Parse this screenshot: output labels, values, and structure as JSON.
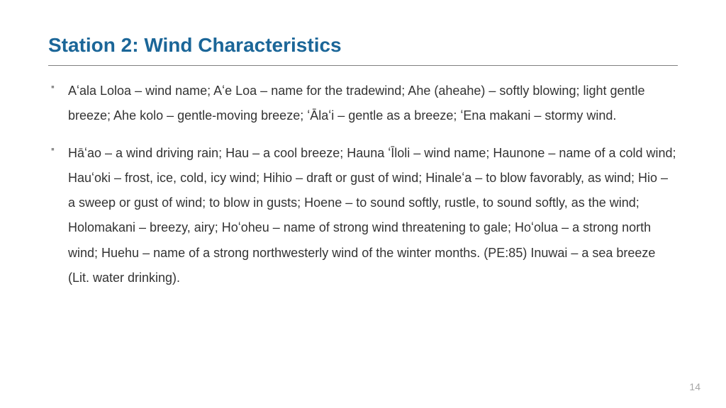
{
  "title": {
    "text": "Station 2: Wind Characteristics",
    "color": "#1b6698",
    "fontsize": 28
  },
  "hr": {
    "color": "#7f7f7f"
  },
  "body": {
    "color": "#333333",
    "fontsize": 18,
    "lineheight": 1.95,
    "bullet_color": "#8e8e8e"
  },
  "bullets": [
    "Aʻala Loloa – wind name; Aʻe Loa – name for the tradewind; Ahe (aheahe) – softly blowing; light gentle breeze; Ahe kolo – gentle-moving breeze; ʻĀlaʻi – gentle as a breeze; ʻEna makani – stormy wind.",
    "Hāʻao – a wind driving rain; Hau – a cool breeze; Hauna ʻĪloli – wind name; Haunone – name of a cold wind; Hauʻoki – frost, ice, cold, icy wind; Hihio – draft or gust of wind; Hinaleʻa – to blow favorably, as wind; Hio – a sweep or gust of wind; to blow in gusts; Hoene – to sound softly, rustle, to sound softly, as the wind; Holomakani – breezy, airy; Hoʻoheu – name of strong wind threatening to gale; Hoʻolua – a strong north wind; Huehu – name of a strong northwesterly wind of the winter months. (PE:85) Inuwai – a sea breeze (Lit. water drinking)."
  ],
  "pagenum": {
    "text": "14",
    "color": "#a6a6a6",
    "fontsize": 14
  }
}
